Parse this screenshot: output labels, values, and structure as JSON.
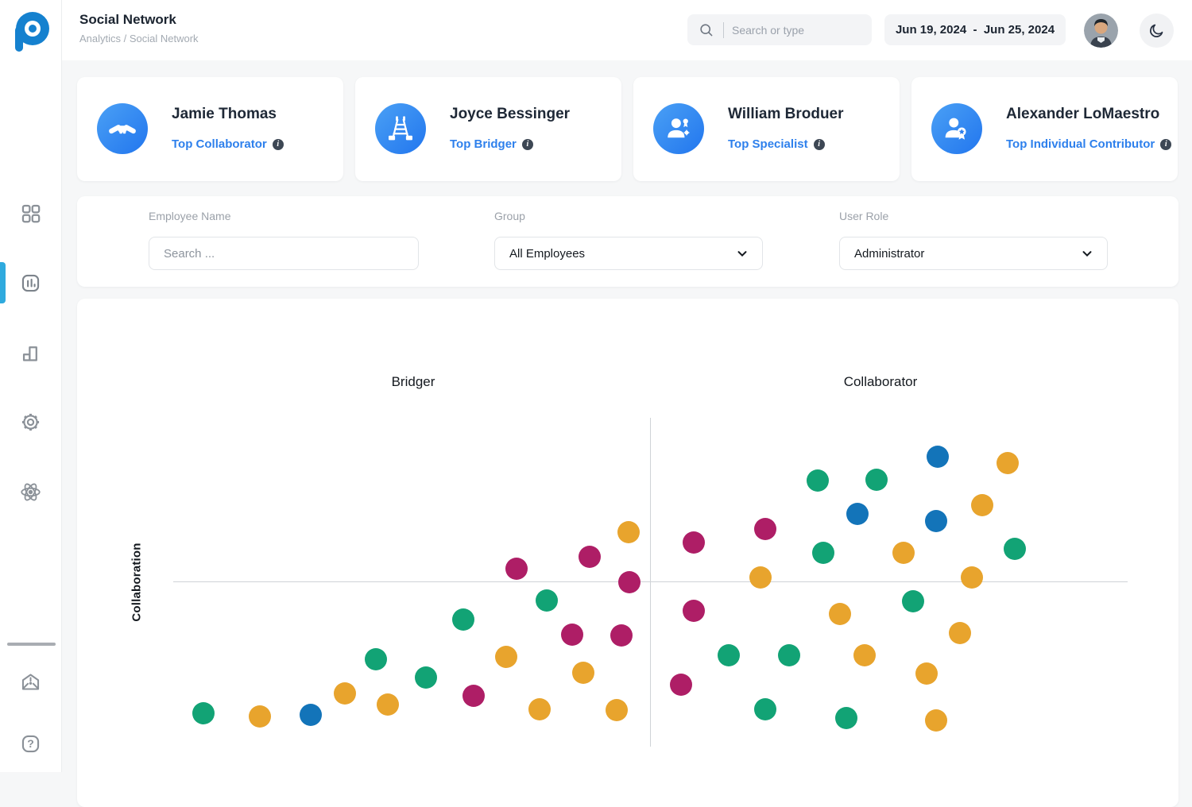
{
  "header": {
    "title": "Social Network",
    "breadcrumb": "Analytics / Social Network",
    "search_placeholder": "Search or type",
    "date_range": "Jun 19, 2024  -  Jun 25, 2024"
  },
  "sidebar": {
    "icons": [
      "dashboard-grid-icon",
      "analytics-panel-icon",
      "bar-chart-icon",
      "settings-gear-icon",
      "atom-icon",
      "inbox-alert-icon",
      "help-icon"
    ],
    "active_item": "analytics-panel-icon",
    "accent_color": "#2faade"
  },
  "top_performers": [
    {
      "name": "Jamie Thomas",
      "role": "Top Collaborator",
      "icon": "handshake-icon"
    },
    {
      "name": "Joyce Bessinger",
      "role": "Top Bridger",
      "icon": "bridge-icon"
    },
    {
      "name": "William Broduer",
      "role": "Top Specialist",
      "icon": "specialist-icon"
    },
    {
      "name": "Alexander LoMaestro",
      "role": "Top Individual Contributor",
      "icon": "contributor-badge-icon"
    }
  ],
  "filters": {
    "employee_name": {
      "label": "Employee Name",
      "placeholder": "Search ..."
    },
    "group": {
      "label": "Group",
      "value": "All Employees"
    },
    "user_role": {
      "label": "User Role",
      "value": "Administrator"
    }
  },
  "chart_data": {
    "type": "scatter",
    "quadrant_labels": {
      "top_left": "Bridger",
      "top_right": "Collaborator"
    },
    "ylabel": "Collaboration",
    "axes": {
      "x_range": [
        0,
        100
      ],
      "y_range": [
        0,
        100
      ],
      "cross": [
        50,
        50
      ],
      "grid": false,
      "tick_labels": false
    },
    "legend": "none",
    "colors": {
      "green": "#12a375",
      "orange": "#e8a42d",
      "magenta": "#ae1e66",
      "blue": "#1374b9"
    },
    "points": [
      {
        "x": 3.2,
        "y": 10.1,
        "c": "green"
      },
      {
        "x": 9.1,
        "y": 9.2,
        "c": "orange"
      },
      {
        "x": 14.4,
        "y": 9.7,
        "c": "blue"
      },
      {
        "x": 18.0,
        "y": 16.2,
        "c": "orange"
      },
      {
        "x": 21.2,
        "y": 26.6,
        "c": "green"
      },
      {
        "x": 22.5,
        "y": 12.8,
        "c": "orange"
      },
      {
        "x": 26.5,
        "y": 21.0,
        "c": "green"
      },
      {
        "x": 30.4,
        "y": 38.6,
        "c": "green"
      },
      {
        "x": 31.5,
        "y": 15.5,
        "c": "magenta"
      },
      {
        "x": 34.9,
        "y": 27.3,
        "c": "orange"
      },
      {
        "x": 36.0,
        "y": 54.1,
        "c": "magenta"
      },
      {
        "x": 38.4,
        "y": 11.4,
        "c": "orange"
      },
      {
        "x": 39.1,
        "y": 44.4,
        "c": "green"
      },
      {
        "x": 41.8,
        "y": 34.1,
        "c": "magenta"
      },
      {
        "x": 43.0,
        "y": 22.5,
        "c": "orange"
      },
      {
        "x": 43.6,
        "y": 57.7,
        "c": "magenta"
      },
      {
        "x": 46.5,
        "y": 11.1,
        "c": "orange"
      },
      {
        "x": 47.0,
        "y": 33.8,
        "c": "magenta"
      },
      {
        "x": 47.7,
        "y": 65.2,
        "c": "orange"
      },
      {
        "x": 47.8,
        "y": 50.0,
        "c": "magenta"
      },
      {
        "x": 53.2,
        "y": 18.8,
        "c": "magenta"
      },
      {
        "x": 54.5,
        "y": 62.1,
        "c": "magenta"
      },
      {
        "x": 54.5,
        "y": 41.3,
        "c": "magenta"
      },
      {
        "x": 58.2,
        "y": 27.8,
        "c": "green"
      },
      {
        "x": 61.5,
        "y": 51.4,
        "c": "orange"
      },
      {
        "x": 62.0,
        "y": 66.2,
        "c": "magenta"
      },
      {
        "x": 62.0,
        "y": 11.4,
        "c": "green"
      },
      {
        "x": 64.5,
        "y": 27.8,
        "c": "green"
      },
      {
        "x": 67.5,
        "y": 80.9,
        "c": "green"
      },
      {
        "x": 68.1,
        "y": 58.9,
        "c": "green"
      },
      {
        "x": 69.9,
        "y": 40.3,
        "c": "orange"
      },
      {
        "x": 70.5,
        "y": 8.7,
        "c": "green"
      },
      {
        "x": 71.7,
        "y": 70.8,
        "c": "blue"
      },
      {
        "x": 72.4,
        "y": 27.8,
        "c": "orange"
      },
      {
        "x": 73.7,
        "y": 81.2,
        "c": "green"
      },
      {
        "x": 76.5,
        "y": 58.9,
        "c": "orange"
      },
      {
        "x": 77.5,
        "y": 44.2,
        "c": "green"
      },
      {
        "x": 78.9,
        "y": 22.2,
        "c": "orange"
      },
      {
        "x": 80.1,
        "y": 88.2,
        "c": "blue"
      },
      {
        "x": 79.9,
        "y": 68.6,
        "c": "blue"
      },
      {
        "x": 79.9,
        "y": 8.0,
        "c": "orange"
      },
      {
        "x": 82.4,
        "y": 34.5,
        "c": "orange"
      },
      {
        "x": 83.7,
        "y": 51.4,
        "c": "orange"
      },
      {
        "x": 84.8,
        "y": 73.4,
        "c": "orange"
      },
      {
        "x": 87.4,
        "y": 86.2,
        "c": "orange"
      },
      {
        "x": 88.2,
        "y": 60.1,
        "c": "green"
      }
    ]
  }
}
